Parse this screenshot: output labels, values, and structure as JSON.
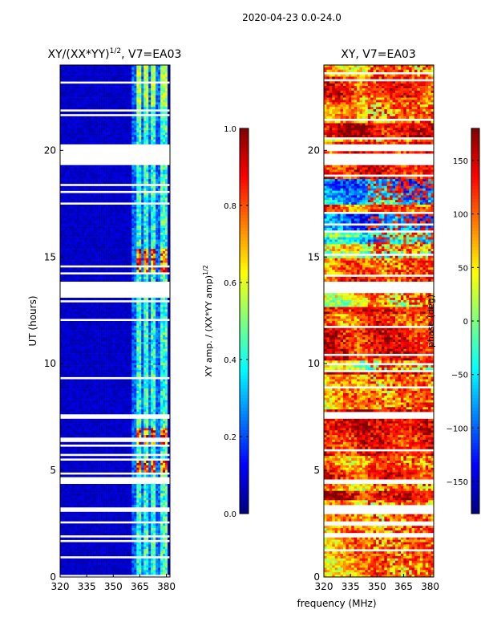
{
  "suptitle": "2020-04-23 0.0-24.0",
  "shared_xlabel": "frequency (MHz)",
  "chart_data": [
    {
      "type": "heatmap",
      "title": "XY/(XX*YY)^1/2, V7=EA03",
      "title_main": "XY/(XX*YY)",
      "title_sup": "1/2",
      "title_tail": ", V7=EA03",
      "ylabel": "UT (hours)",
      "xlim": [
        320,
        382
      ],
      "ylim": [
        0,
        24
      ],
      "xticks": [
        320,
        335,
        350,
        365,
        380
      ],
      "yticks": [
        0,
        5,
        10,
        15,
        20
      ],
      "colorbar": {
        "label_main": "XY amp. / (XX*YY amp)",
        "label_sup": "1/2",
        "range": [
          0.0,
          1.0
        ],
        "ticks": [
          "0.0",
          "0.2",
          "0.4",
          "0.6",
          "0.8",
          "1.0"
        ],
        "colormap": "jet"
      },
      "bright_bands_mhz": [
        [
          363,
          366
        ],
        [
          367,
          370
        ],
        [
          371,
          374
        ],
        [
          376,
          380
        ]
      ],
      "peak_hours": [
        [
          14.3,
          15.4
        ],
        [
          6.1,
          7.0
        ],
        [
          4.9,
          5.4
        ]
      ],
      "gap_hours": [
        [
          13.1,
          13.8
        ],
        [
          19.3,
          19.8
        ],
        [
          20.0,
          20.3
        ],
        [
          7.4,
          7.6
        ],
        [
          4.4,
          4.6
        ],
        [
          3.1,
          3.3
        ],
        [
          1.8,
          2.0
        ]
      ]
    },
    {
      "type": "heatmap",
      "title": "XY, V7=EA03",
      "ylabel": "",
      "xlim": [
        320,
        382
      ],
      "ylim": [
        0,
        24
      ],
      "xticks": [
        320,
        335,
        350,
        365,
        380
      ],
      "yticks": [
        0,
        5,
        10,
        15,
        20
      ],
      "colorbar": {
        "label_main": "phase (deg)",
        "range": [
          -180,
          180
        ],
        "ticks": [
          "-150",
          "-100",
          "-50",
          "0",
          "50",
          "100",
          "150"
        ],
        "tick_values": [
          -150,
          -100,
          -50,
          0,
          50,
          100,
          150
        ],
        "colormap": "jet"
      },
      "gap_hours": [
        [
          13.3,
          13.8
        ],
        [
          19.3,
          19.8
        ],
        [
          20.0,
          20.3
        ],
        [
          7.4,
          7.6
        ],
        [
          4.4,
          4.6
        ],
        [
          3.1,
          3.3
        ],
        [
          1.8,
          2.0
        ]
      ]
    }
  ],
  "colors": {
    "jet": [
      "#00007f",
      "#0000ff",
      "#007fff",
      "#00ffff",
      "#7fff7f",
      "#ffff00",
      "#ff7f00",
      "#ff0000",
      "#7f0000"
    ],
    "background": "#ffffff",
    "axis": "#000000"
  }
}
